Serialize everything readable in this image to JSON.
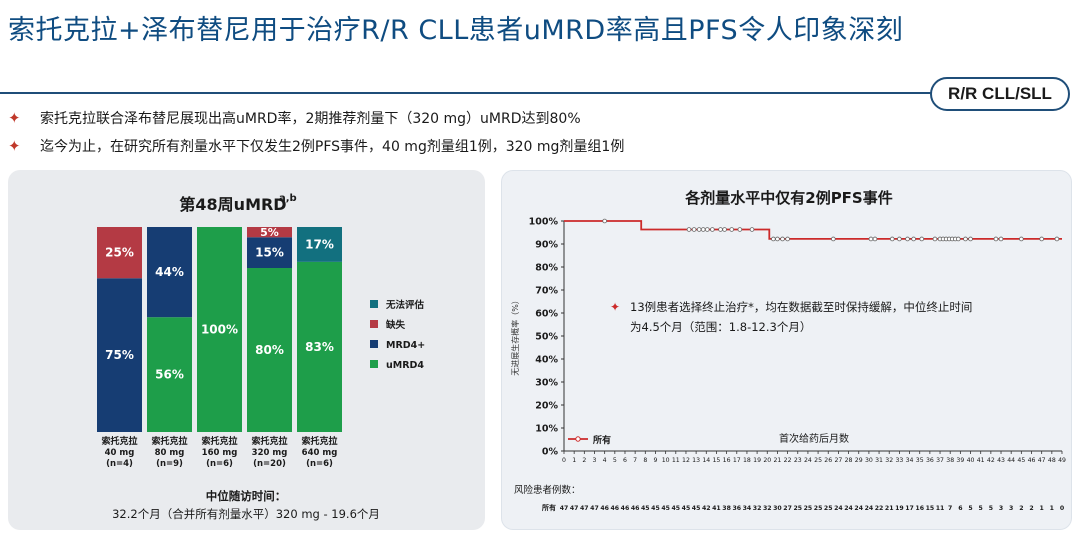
{
  "header": {
    "title": "索托克拉+泽布替尼用于治疗R/R CLL患者uMRD率高且PFS令人印象深刻",
    "tag": "R/R CLL/SLL"
  },
  "bullets": [
    "索托克拉联合泽布替尼展现出高uMRD率，2期推荐剂量下（320 mg）uMRD达到80%",
    "迄今为止，在研究所有剂量水平下仅发生2例PFS事件，40 mg剂量组1例，320 mg剂量组1例"
  ],
  "colors": {
    "umrd4": "#1e9e4a",
    "mrd4": "#163d73",
    "missing": "#b43a44",
    "unevaluable": "#12707f",
    "km_line": "#cc2a2a"
  },
  "chart_data": [
    {
      "type": "bar",
      "stacked": true,
      "title": "第48周uMRD",
      "title_sup": "a,b",
      "categories": [
        [
          "索托克拉",
          "40 mg",
          "(n=4)"
        ],
        [
          "索托克拉",
          "80 mg",
          "(n=9)"
        ],
        [
          "索托克拉",
          "160 mg",
          "(n=6)"
        ],
        [
          "索托克拉",
          "320 mg",
          "(n=20)"
        ],
        [
          "索托克拉",
          "640 mg",
          "(n=6)"
        ]
      ],
      "series": [
        {
          "name": "uMRD4",
          "values": [
            0,
            56,
            100,
            80,
            83
          ]
        },
        {
          "name": "MRD4+",
          "values": [
            75,
            44,
            0,
            15,
            0
          ]
        },
        {
          "name": "缺失",
          "values": [
            25,
            0,
            0,
            5,
            0
          ]
        },
        {
          "name": "无法评估",
          "values": [
            0,
            0,
            0,
            0,
            17
          ]
        }
      ],
      "legend": [
        "无法评估",
        "缺失",
        "MRD4+",
        "uMRD4"
      ],
      "legend_position": "right",
      "ylim": [
        0,
        100
      ],
      "followup_label": "中位随访时间：",
      "followup_value": "32.2个月（合并所有剂量水平）320 mg - 19.6个月"
    },
    {
      "type": "line",
      "step": true,
      "title": "各剂量水平中仅有2例PFS事件",
      "ylabel": "无进展生存概率（%）",
      "xlabel": "首次给药后月数",
      "xlim": [
        0,
        49
      ],
      "ylim": [
        0,
        100
      ],
      "yticks": [
        "0%",
        "10%",
        "20%",
        "30%",
        "40%",
        "50%",
        "60%",
        "70%",
        "80%",
        "90%",
        "100%"
      ],
      "xticks": [
        0,
        1,
        2,
        3,
        4,
        5,
        6,
        7,
        8,
        9,
        10,
        11,
        12,
        13,
        14,
        15,
        16,
        17,
        18,
        19,
        20,
        21,
        22,
        23,
        24,
        25,
        26,
        27,
        28,
        29,
        30,
        31,
        32,
        33,
        34,
        35,
        36,
        37,
        38,
        39,
        40,
        41,
        42,
        43,
        44,
        45,
        46,
        47,
        48,
        49
      ],
      "series": [
        {
          "name": "所有",
          "steps": [
            [
              0,
              100
            ],
            [
              7.6,
              100
            ],
            [
              7.6,
              96.3
            ],
            [
              20.2,
              96.3
            ],
            [
              20.2,
              92.2
            ],
            [
              49,
              92.2
            ]
          ],
          "censors": [
            [
              4,
              100
            ],
            [
              12.3,
              96.3
            ],
            [
              12.8,
              96.3
            ],
            [
              13.3,
              96.3
            ],
            [
              13.7,
              96.3
            ],
            [
              14.1,
              96.3
            ],
            [
              14.6,
              96.3
            ],
            [
              15.4,
              96.3
            ],
            [
              15.8,
              96.3
            ],
            [
              16.5,
              96.3
            ],
            [
              17.3,
              96.3
            ],
            [
              18.5,
              96.3
            ],
            [
              20.6,
              92.2
            ],
            [
              21.0,
              92.2
            ],
            [
              21.5,
              92.2
            ],
            [
              22.0,
              92.2
            ],
            [
              26.5,
              92.2
            ],
            [
              30.2,
              92.2
            ],
            [
              30.6,
              92.2
            ],
            [
              32.3,
              92.2
            ],
            [
              33.0,
              92.2
            ],
            [
              33.8,
              92.2
            ],
            [
              34.4,
              92.2
            ],
            [
              35.2,
              92.2
            ],
            [
              36.5,
              92.2
            ],
            [
              37.0,
              92.2
            ],
            [
              37.3,
              92.2
            ],
            [
              37.6,
              92.2
            ],
            [
              37.9,
              92.2
            ],
            [
              38.2,
              92.2
            ],
            [
              38.5,
              92.2
            ],
            [
              38.8,
              92.2
            ],
            [
              39.5,
              92.2
            ],
            [
              40.0,
              92.2
            ],
            [
              42.5,
              92.2
            ],
            [
              43.0,
              92.2
            ],
            [
              45.0,
              92.2
            ],
            [
              47.0,
              92.2
            ],
            [
              48.5,
              92.2
            ]
          ]
        }
      ],
      "annotation": "13例患者选择终止治疗*，均在数据截至时保持缓解，中位终止时间为4.5个月（范围：1.8-12.3个月）",
      "legend": [
        "所有"
      ],
      "legend_position": "bottom-left",
      "risk_label": "风险患者例数：",
      "risk_row_label": "所有",
      "risk_counts": [
        47,
        47,
        47,
        47,
        46,
        46,
        46,
        46,
        45,
        45,
        45,
        45,
        45,
        45,
        42,
        41,
        38,
        36,
        34,
        32,
        32,
        30,
        27,
        25,
        25,
        25,
        25,
        24,
        24,
        24,
        24,
        22,
        21,
        19,
        17,
        16,
        15,
        11,
        7,
        6,
        5,
        5,
        5,
        3,
        3,
        2,
        2,
        1,
        1,
        0
      ]
    }
  ]
}
